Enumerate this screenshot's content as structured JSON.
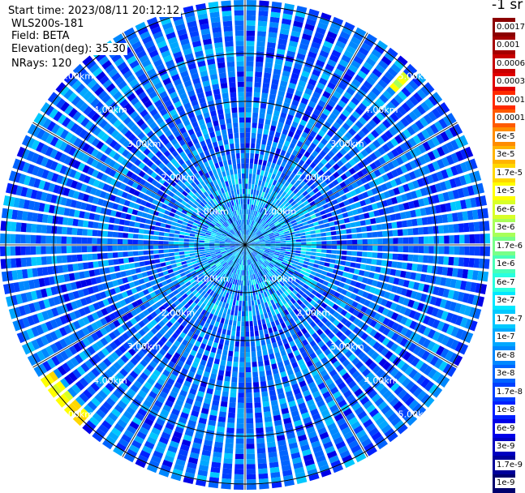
{
  "header": {
    "start_time": "Start time: 2023/08/11 20:12:12",
    "instrument": "WLS200s-181",
    "field": "Field: BETA",
    "elevation": "Elevation(deg): 35.30",
    "nrays": "NRays: 120"
  },
  "colorbar": {
    "units": "-1 sr",
    "levels": [
      "0.0017",
      "0.001",
      "0.0006",
      "0.0003",
      "0.00017",
      "0.0001",
      "6e-5",
      "3e-5",
      "1.7e-5",
      "1e-5",
      "6e-6",
      "3e-6",
      "1.7e-6",
      "1e-6",
      "6e-7",
      "3e-7",
      "1.7e-7",
      "1e-7",
      "6e-8",
      "3e-8",
      "1.7e-8",
      "1e-8",
      "6e-9",
      "3e-9",
      "1.7e-9",
      "1e-9"
    ],
    "colors": [
      "#8b0000",
      "#a50000",
      "#c80000",
      "#e00000",
      "#ff2a00",
      "#ff5a00",
      "#ff8c00",
      "#ffb400",
      "#ffd700",
      "#ffff00",
      "#d8ff28",
      "#a8ff58",
      "#78ff88",
      "#48ffb8",
      "#28ffe0",
      "#00e8ff",
      "#00c8ff",
      "#00a8ff",
      "#0088ff",
      "#0064ff",
      "#0040ff",
      "#0020ff",
      "#0000e8",
      "#0000c0",
      "#00009a",
      "#00006e"
    ]
  },
  "chart_data": {
    "type": "heatmap",
    "projection": "polar-ppi",
    "field": "BETA",
    "elevation_deg": 35.3,
    "nrays": 120,
    "range_rings_km": [
      1,
      2,
      3,
      4,
      5
    ],
    "ring_labels": [
      "1.00km",
      "2.00km",
      "3.00km",
      "4.00km",
      "5.00km"
    ],
    "radial_lines_deg": [
      0,
      30,
      60,
      90,
      120,
      150,
      180,
      210,
      240,
      270,
      300,
      330
    ],
    "dominant_level": "1.7e-8",
    "high_return_arcs": [
      {
        "azimuth_deg_from": 4,
        "azimuth_deg_to": 40,
        "range_km": 5.3,
        "level": "3e-5"
      },
      {
        "azimuth_deg_from": 222,
        "azimuth_deg_to": 236,
        "range_km": 5.0,
        "level": "1e-5"
      },
      {
        "azimuth_deg_from": 41,
        "azimuth_deg_to": 44,
        "range_km": 4.7,
        "level": "6e-6"
      }
    ]
  }
}
